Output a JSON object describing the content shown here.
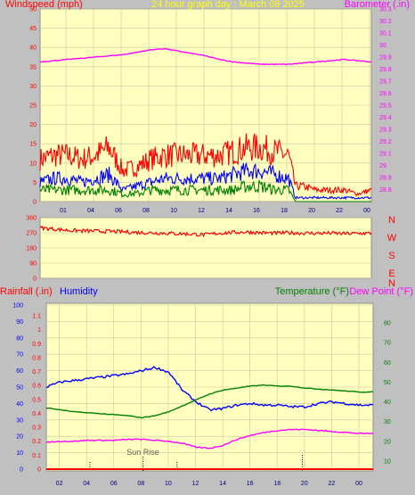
{
  "colors": {
    "background": "#c0c0c0",
    "plot_bg": "#ffffc0",
    "wind": "#ff0000",
    "wind_avg": "#0000ff",
    "wind_low": "#008000",
    "barometer": "#ff00ff",
    "direction": "#ff0000",
    "rainfall": "#ff0000",
    "humidity": "#0000ff",
    "temperature": "#008000",
    "dewpoint": "#ff00ff",
    "title": "#ffff00",
    "grid": "#c8c8a0",
    "sunrise": "#000000"
  },
  "chart_data": [
    {
      "id": "wind",
      "type": "line",
      "title": "24 hour graph day : March 09 2025",
      "ylabel_left": "Windspeed (mph)",
      "ylabel_right": "Barometer (.in)",
      "x_ticks": [
        "01",
        "04",
        "06",
        "08",
        "10",
        "12",
        "14",
        "16",
        "18",
        "20",
        "22",
        "00"
      ],
      "x_range": [
        0,
        24
      ],
      "y_left_range": [
        0,
        50
      ],
      "y_left_ticks": [
        0,
        5,
        10,
        15,
        20,
        25,
        30,
        35,
        40,
        45,
        50
      ],
      "y_right_range": [
        28.7,
        30.3
      ],
      "y_right_ticks": [
        "28.8",
        "28.9",
        "29",
        "29.1",
        "29.2",
        "29.3",
        "29.4",
        "29.5",
        "29.6",
        "29.7",
        "29.8",
        "29.9",
        "30",
        "30.1",
        "30.2",
        "30.3"
      ],
      "series": [
        {
          "key": "wind_gust",
          "axis": "left",
          "x": [
            0,
            1,
            2,
            3,
            4,
            5,
            6,
            7,
            8,
            9,
            10,
            11,
            12,
            13,
            14,
            15,
            16,
            17,
            18,
            18.5,
            19,
            20,
            21,
            22,
            23,
            24
          ],
          "y": [
            11,
            12,
            12,
            11,
            12,
            14,
            8,
            9,
            11,
            12,
            12,
            12,
            12,
            12,
            13,
            14,
            14,
            13,
            12,
            4,
            4,
            3,
            3,
            3,
            2,
            3
          ]
        },
        {
          "key": "wind_avg",
          "axis": "left",
          "x": [
            0,
            1,
            2,
            3,
            4,
            5,
            6,
            7,
            8,
            9,
            10,
            11,
            12,
            13,
            14,
            15,
            16,
            17,
            18,
            18.5,
            19,
            20,
            21,
            22,
            23,
            24
          ],
          "y": [
            5,
            6,
            6,
            5,
            6,
            7,
            3,
            4,
            5,
            6,
            6,
            6,
            6,
            6,
            7,
            8,
            8,
            7,
            6,
            1,
            1,
            1,
            1,
            1,
            1,
            1
          ]
        },
        {
          "key": "wind_low",
          "axis": "left",
          "x": [
            0,
            1,
            2,
            3,
            4,
            5,
            6,
            7,
            8,
            9,
            10,
            11,
            12,
            13,
            14,
            15,
            16,
            17,
            18,
            18.5,
            19,
            20,
            21,
            22,
            23,
            24
          ],
          "y": [
            3,
            3,
            3,
            3,
            3,
            3,
            2,
            2,
            3,
            3,
            3,
            3,
            3,
            3,
            3,
            4,
            4,
            3,
            3,
            0,
            0,
            0,
            0,
            0,
            0,
            0
          ]
        },
        {
          "key": "barometer",
          "axis": "right",
          "x": [
            0,
            1,
            2,
            3,
            4,
            5,
            6,
            7,
            8,
            9,
            10,
            11,
            12,
            13,
            14,
            15,
            16,
            17,
            18,
            19,
            20,
            21,
            22,
            23,
            24
          ],
          "y": [
            29.86,
            29.87,
            29.88,
            29.89,
            29.9,
            29.91,
            29.92,
            29.94,
            29.96,
            29.97,
            29.95,
            29.93,
            29.91,
            29.88,
            29.86,
            29.85,
            29.84,
            29.84,
            29.84,
            29.85,
            29.86,
            29.87,
            29.88,
            29.87,
            29.86
          ]
        }
      ]
    },
    {
      "id": "direction",
      "type": "line",
      "x_ticks": [],
      "x_range": [
        0,
        24
      ],
      "y_range": [
        0,
        360
      ],
      "y_ticks": [
        0,
        90,
        180,
        270,
        360
      ],
      "compass": [
        "N",
        "W",
        "S",
        "E",
        "N"
      ],
      "series": [
        {
          "key": "wind_direction",
          "x": [
            0,
            1,
            2,
            3,
            4,
            5,
            6,
            7,
            8,
            9,
            10,
            11,
            12,
            13,
            14,
            15,
            16,
            17,
            18,
            19,
            20,
            21,
            22,
            23,
            24
          ],
          "y": [
            300,
            292,
            285,
            282,
            280,
            278,
            276,
            272,
            270,
            268,
            265,
            262,
            258,
            268,
            272,
            275,
            270,
            268,
            270,
            268,
            267,
            268,
            265,
            266,
            268
          ]
        }
      ]
    },
    {
      "id": "temp",
      "type": "line",
      "ylabel_left": "Rainfall (.in)",
      "ylabel_left2": "Humidity",
      "ylabel_right": "Temperature (°F)",
      "ylabel_right2": "Dew Point (°F)",
      "annotation": "Sun Rise",
      "x_ticks": [
        "02",
        "04",
        "06",
        "08",
        "10",
        "12",
        "14",
        "16",
        "18",
        "20",
        "22",
        "00"
      ],
      "x_range": [
        0,
        24
      ],
      "humidity_ticks": [
        0,
        10,
        20,
        30,
        40,
        50,
        60,
        70,
        80,
        90,
        100
      ],
      "rain_ticks": [
        "0",
        "0.1",
        "0.2",
        "0.3",
        "0.4",
        "0.5",
        "0.6",
        "0.7",
        "0.8",
        "0.9",
        "1",
        "1.1"
      ],
      "temp_range": [
        5,
        90
      ],
      "temp_ticks": [
        10,
        20,
        30,
        40,
        50,
        60,
        70,
        80
      ],
      "series": [
        {
          "key": "humidity",
          "axis": "humidity",
          "x": [
            0,
            1,
            2,
            3,
            4,
            5,
            6,
            7,
            8,
            9,
            10,
            11,
            12,
            13,
            14,
            15,
            16,
            17,
            18,
            19,
            20,
            21,
            22,
            23,
            24
          ],
          "y": [
            50,
            53,
            54,
            55,
            56,
            57,
            58,
            60,
            62,
            59,
            48,
            41,
            36,
            37,
            39,
            40,
            39,
            39,
            38,
            38,
            40,
            41,
            40,
            39,
            39
          ]
        },
        {
          "key": "temperature",
          "axis": "temp",
          "x": [
            0,
            1,
            2,
            3,
            4,
            5,
            6,
            7,
            8,
            9,
            10,
            11,
            12,
            13,
            14,
            15,
            16,
            17,
            18,
            19,
            20,
            21,
            22,
            23,
            24
          ],
          "y": [
            37,
            36,
            35,
            34.5,
            34,
            33.5,
            33,
            32,
            33,
            35,
            38,
            41,
            44,
            46,
            47,
            48,
            48.5,
            48,
            48,
            47,
            46.5,
            46,
            45.5,
            45,
            45
          ]
        },
        {
          "key": "dewpoint",
          "axis": "temp",
          "x": [
            0,
            1,
            2,
            3,
            4,
            5,
            6,
            7,
            8,
            9,
            10,
            11,
            12,
            13,
            14,
            15,
            16,
            17,
            18,
            19,
            20,
            21,
            22,
            23,
            24
          ],
          "y": [
            19.5,
            20,
            20,
            20.5,
            20.5,
            20.5,
            21,
            21,
            20.5,
            20,
            19,
            17,
            16.5,
            18,
            21,
            23,
            24.5,
            25.5,
            26,
            26,
            25.5,
            25,
            24.5,
            24,
            24
          ]
        },
        {
          "key": "rainfall",
          "axis": "rain",
          "x": [
            0,
            24
          ],
          "y": [
            0,
            0
          ]
        }
      ],
      "sunrise_hour": 7.1,
      "marker_hours": [
        3.2,
        9.6,
        18.8
      ]
    }
  ]
}
